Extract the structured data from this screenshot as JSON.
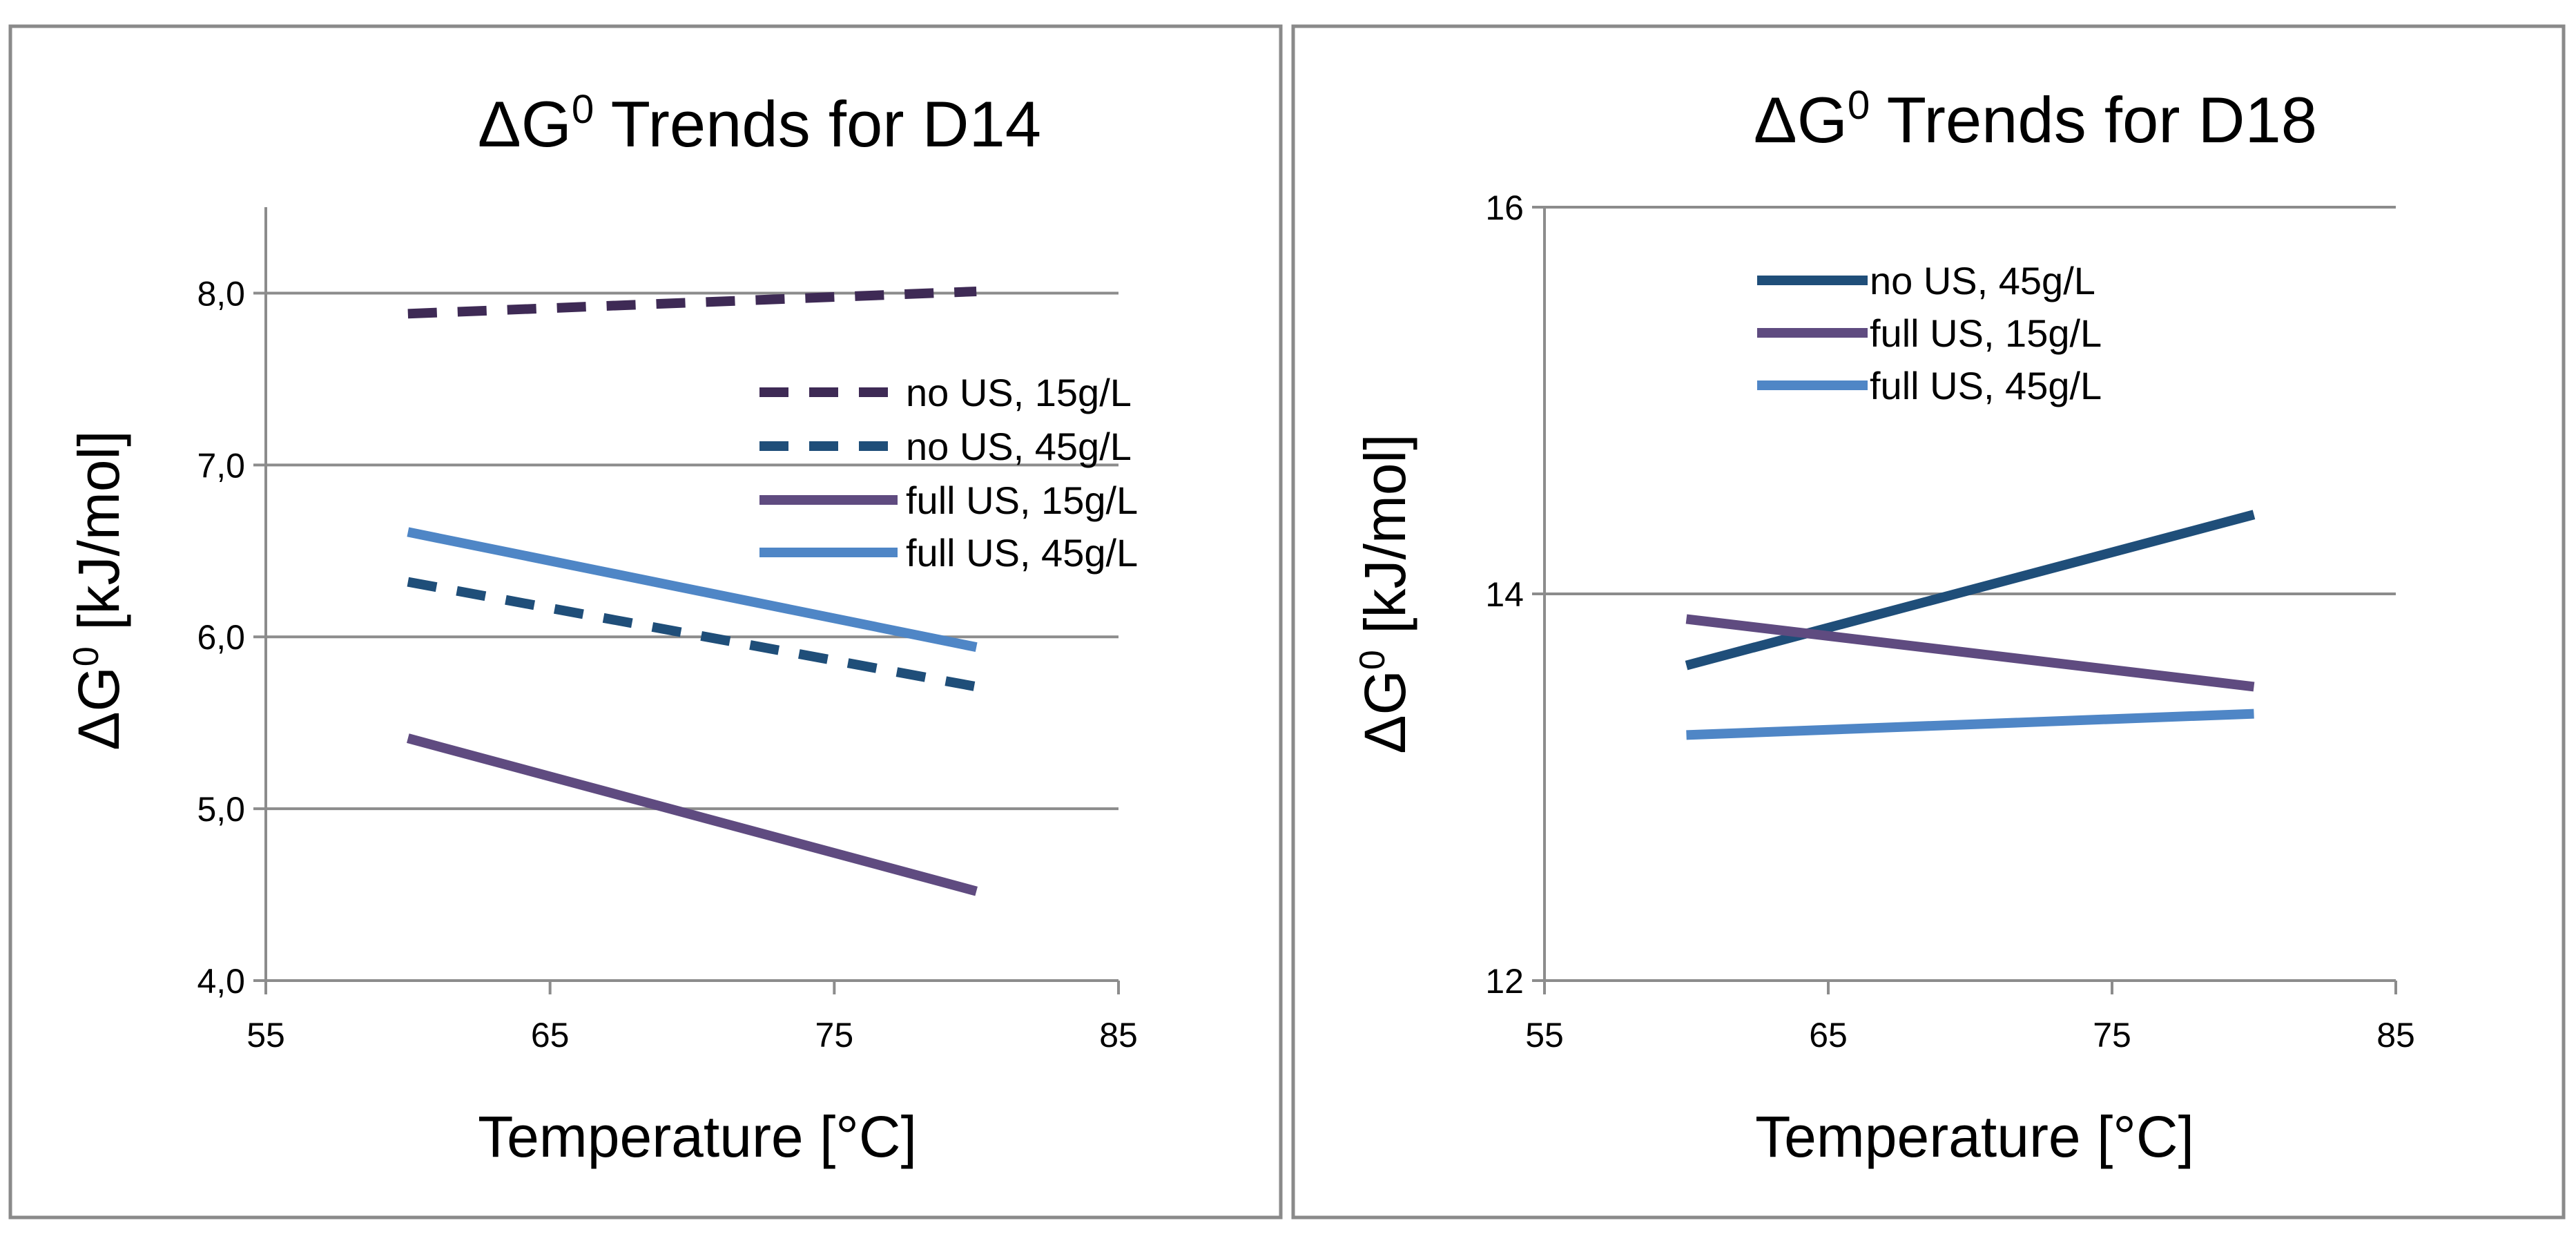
{
  "chart_data": [
    {
      "type": "line",
      "title_prefix": "ΔG",
      "title_sup": "0",
      "title_suffix": " Trends for D14",
      "xlabel": "Temperature [°C]",
      "ylabel_prefix": "ΔG",
      "ylabel_sup": "0",
      "ylabel_suffix": " [kJ/mol]",
      "xlim": [
        55,
        85
      ],
      "ylim": [
        4.0,
        8.5
      ],
      "xticks": [
        55,
        65,
        75,
        85
      ],
      "xtick_labels": [
        "55",
        "65",
        "75",
        "85"
      ],
      "yticks": [
        4.0,
        5.0,
        6.0,
        7.0,
        8.0
      ],
      "ytick_labels": [
        "4,0",
        "5,0",
        "6,0",
        "7,0",
        "8,0"
      ],
      "grid": "horizontal",
      "legend_position": "right",
      "series": [
        {
          "name": "no US, 15g/L",
          "color": "#3e2a55",
          "dash": "dashed",
          "x": [
            60,
            80
          ],
          "y": [
            7.88,
            8.01
          ]
        },
        {
          "name": "no US, 45g/L",
          "color": "#1f4e79",
          "dash": "dashed",
          "x": [
            60,
            80
          ],
          "y": [
            6.32,
            5.71
          ]
        },
        {
          "name": "full US, 15g/L",
          "color": "#5f4b80",
          "dash": "solid",
          "x": [
            60,
            80
          ],
          "y": [
            5.41,
            4.52
          ]
        },
        {
          "name": "full US, 45g/L",
          "color": "#4f86c6",
          "dash": "solid",
          "x": [
            60,
            80
          ],
          "y": [
            6.61,
            5.94
          ]
        }
      ]
    },
    {
      "type": "line",
      "title_prefix": "ΔG",
      "title_sup": "0",
      "title_suffix": " Trends for D18",
      "xlabel": "Temperature [°C]",
      "ylabel_prefix": "ΔG",
      "ylabel_sup": "0",
      "ylabel_suffix": " [kJ/mol]",
      "xlim": [
        55,
        85
      ],
      "ylim": [
        12,
        16
      ],
      "xticks": [
        55,
        65,
        75,
        85
      ],
      "xtick_labels": [
        "55",
        "65",
        "75",
        "85"
      ],
      "yticks": [
        12,
        14,
        16
      ],
      "ytick_labels": [
        "12",
        "14",
        "16"
      ],
      "grid": "horizontal",
      "legend_position": "top-left",
      "series": [
        {
          "name": "no US, 45g/L",
          "color": "#1f4e79",
          "dash": "solid",
          "x": [
            60,
            80
          ],
          "y": [
            13.63,
            14.41
          ]
        },
        {
          "name": "full US, 15g/L",
          "color": "#5f4b80",
          "dash": "solid",
          "x": [
            60,
            80
          ],
          "y": [
            13.87,
            13.52
          ]
        },
        {
          "name": "full US, 45g/L",
          "color": "#4f86c6",
          "dash": "solid",
          "x": [
            60,
            80
          ],
          "y": [
            13.27,
            13.38
          ]
        }
      ]
    }
  ]
}
